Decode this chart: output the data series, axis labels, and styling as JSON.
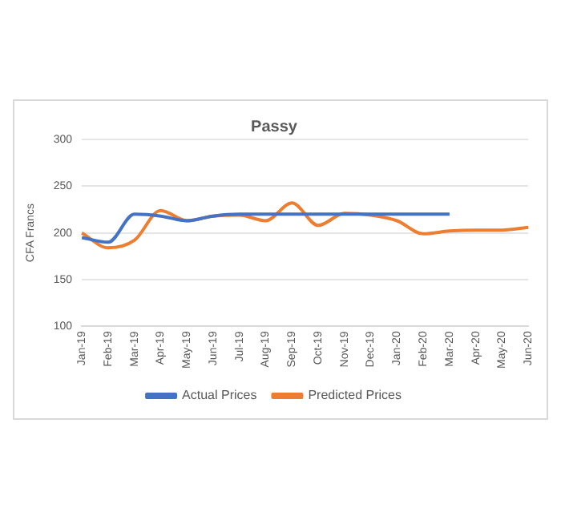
{
  "chart_data": {
    "type": "line",
    "title": "Passy",
    "ylabel": "CFA Francs",
    "categories": [
      "Jan-19",
      "Feb-19",
      "Mar-19",
      "Apr-19",
      "May-19",
      "Jun-19",
      "Jul-19",
      "Aug-19",
      "Sep-19",
      "Oct-19",
      "Nov-19",
      "Dec-19",
      "Jan-20",
      "Feb-20",
      "Mar-20",
      "Apr-20",
      "May-20",
      "Jun-20"
    ],
    "series": [
      {
        "name": "Actual Prices",
        "color": "#4472c4",
        "values": [
          195,
          190,
          220,
          218,
          213,
          218,
          220,
          220,
          220,
          220,
          220,
          220,
          220,
          220,
          220,
          null,
          null,
          null
        ]
      },
      {
        "name": "Predicted Prices",
        "color": "#ed7d31",
        "values": [
          200,
          184,
          192,
          224,
          213,
          218,
          219,
          213,
          232,
          208,
          221,
          219,
          213,
          199,
          202,
          203,
          203,
          206
        ]
      }
    ],
    "ylim": [
      100,
      300
    ],
    "yticks": [
      100,
      150,
      200,
      250,
      300
    ],
    "grid": "y",
    "legend": "bottom",
    "marker": "none",
    "line_style": "solid"
  }
}
